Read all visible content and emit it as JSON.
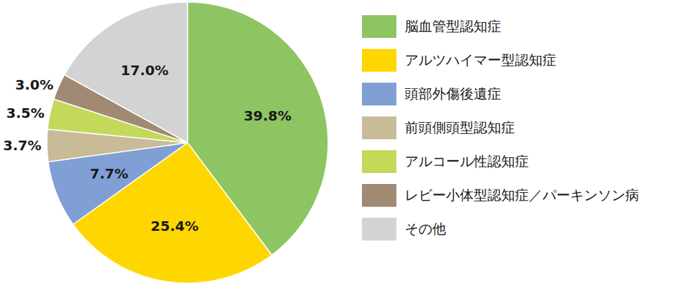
{
  "chart_data": {
    "type": "pie",
    "categories": [
      "脳血管型認知症",
      "アルツハイマー型認知症",
      "頭部外傷後遺症",
      "前頭側頭型認知症",
      "アルコール性認知症",
      "レビー小体型認知症／パーキンソン病",
      "その他"
    ],
    "values": [
      39.8,
      25.4,
      7.7,
      3.7,
      3.5,
      3.0,
      17.0
    ],
    "value_labels": [
      "39.8%",
      "25.4%",
      "7.7%",
      "3.7%",
      "3.5%",
      "3.0%",
      "17.0%"
    ],
    "colors": [
      "#8ec563",
      "#ffd700",
      "#7f9fd5",
      "#c9bb98",
      "#c3d95a",
      "#a08a74",
      "#d3d3d3"
    ],
    "data_labels": true,
    "legend": "right"
  }
}
